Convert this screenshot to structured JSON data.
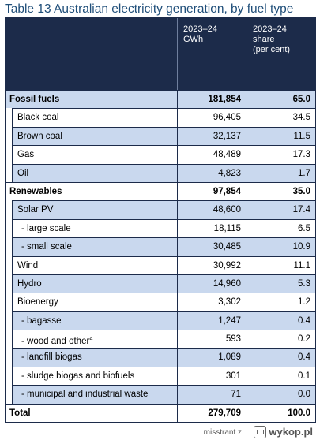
{
  "title": "Table 13 Australian electricity generation, by fuel type",
  "header": {
    "col1": "2023–24\nGWh",
    "col2": "2023–24\nshare\n(per cent)"
  },
  "rows": [
    {
      "label": "Fossil fuels",
      "gwh": "181,854",
      "share": "65.0",
      "level": 0,
      "bold": true,
      "shade": "blue"
    },
    {
      "label": "Black coal",
      "gwh": "96,405",
      "share": "34.5",
      "level": 1,
      "bold": false,
      "shade": "white"
    },
    {
      "label": "Brown coal",
      "gwh": "32,137",
      "share": "11.5",
      "level": 1,
      "bold": false,
      "shade": "blue"
    },
    {
      "label": "Gas",
      "gwh": "48,489",
      "share": "17.3",
      "level": 1,
      "bold": false,
      "shade": "white"
    },
    {
      "label": "Oil",
      "gwh": "4,823",
      "share": "1.7",
      "level": 1,
      "bold": false,
      "shade": "blue"
    },
    {
      "label": "Renewables",
      "gwh": "97,854",
      "share": "35.0",
      "level": 0,
      "bold": true,
      "shade": "white"
    },
    {
      "label": "Solar PV",
      "gwh": "48,600",
      "share": "17.4",
      "level": 1,
      "bold": false,
      "shade": "blue"
    },
    {
      "label": "- large scale",
      "gwh": "18,115",
      "share": "6.5",
      "level": 2,
      "bold": false,
      "shade": "white"
    },
    {
      "label": "- small scale",
      "gwh": "30,485",
      "share": "10.9",
      "level": 2,
      "bold": false,
      "shade": "blue"
    },
    {
      "label": "Wind",
      "gwh": "30,992",
      "share": "11.1",
      "level": 1,
      "bold": false,
      "shade": "white"
    },
    {
      "label": "Hydro",
      "gwh": "14,960",
      "share": "5.3",
      "level": 1,
      "bold": false,
      "shade": "blue"
    },
    {
      "label": "Bioenergy",
      "gwh": "3,302",
      "share": "1.2",
      "level": 1,
      "bold": false,
      "shade": "white"
    },
    {
      "label": "- bagasse",
      "gwh": "1,247",
      "share": "0.4",
      "level": 2,
      "bold": false,
      "shade": "blue"
    },
    {
      "label": "- wood and other",
      "sup": "a",
      "gwh": "593",
      "share": "0.2",
      "level": 2,
      "bold": false,
      "shade": "white"
    },
    {
      "label": "- landfill biogas",
      "gwh": "1,089",
      "share": "0.4",
      "level": 2,
      "bold": false,
      "shade": "blue"
    },
    {
      "label": "- sludge biogas and biofuels",
      "gwh": "301",
      "share": "0.1",
      "level": 2,
      "bold": false,
      "shade": "white"
    },
    {
      "label": "- municipal and industrial waste",
      "gwh": "71",
      "share": "0.0",
      "level": 2,
      "bold": false,
      "shade": "blue"
    },
    {
      "label": "Total",
      "gwh": "279,709",
      "share": "100.0",
      "level": 0,
      "bold": true,
      "shade": "white"
    }
  ],
  "watermark": {
    "user": "misstrant z",
    "site": "wykop.pl"
  }
}
